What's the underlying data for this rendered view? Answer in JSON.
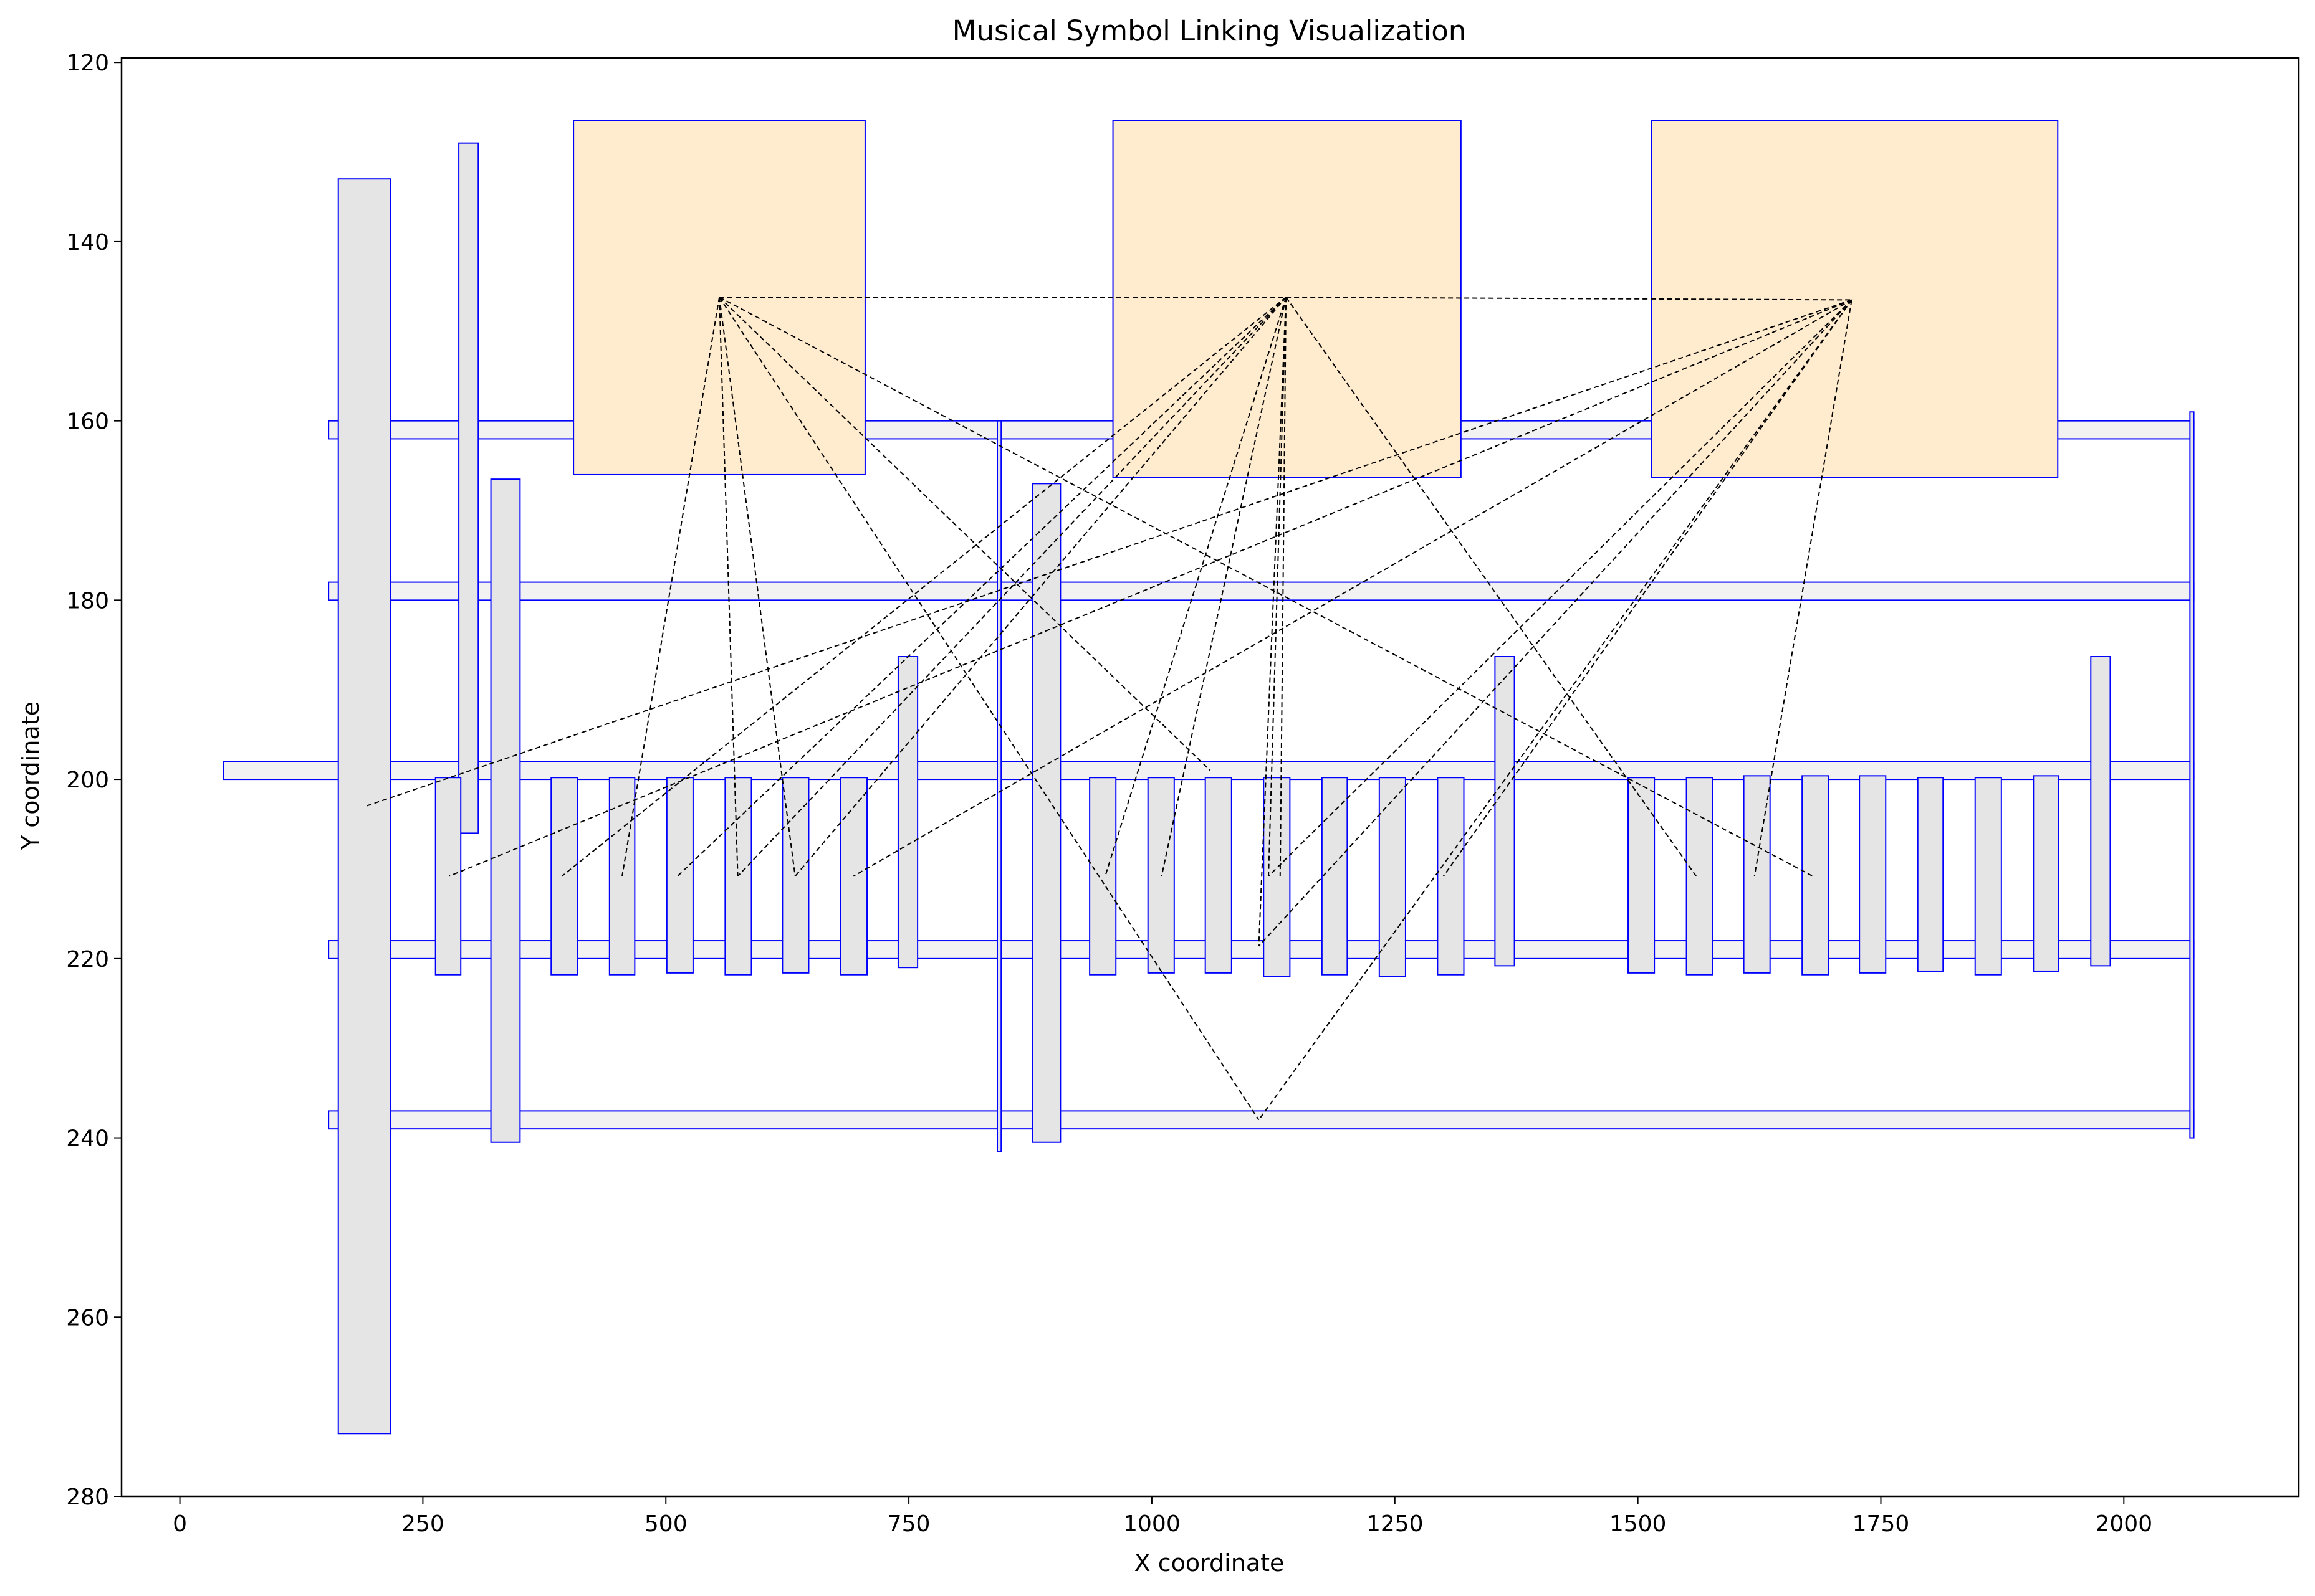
{
  "chart_data": {
    "type": "scatter",
    "title": "Musical Symbol Linking Visualization",
    "xlabel": "X coordinate",
    "ylabel": "Y coordinate",
    "xlim": [
      -60,
      2180
    ],
    "ylim": [
      280,
      119.5
    ],
    "y_inverted": true,
    "grid": false,
    "legend": "none",
    "xticks": [
      0,
      250,
      500,
      750,
      1000,
      1250,
      1500,
      1750,
      2000
    ],
    "yticks": [
      120,
      140,
      160,
      180,
      200,
      220,
      240,
      260,
      280
    ],
    "colors": {
      "box_edge": "#0000ff",
      "orange_fill": "#ffebcd",
      "gray_fill": "#e5e5e5",
      "staff_fill": "#f2f2f2",
      "link": "#000000"
    },
    "series": [
      {
        "boxes": [
          {
            "x": [
              153,
              2072
            ],
            "y": [
              160.0,
              162.0
            ],
            "fill": "staff"
          },
          {
            "x": [
              153,
              2072
            ],
            "y": [
              178.0,
              180.0
            ],
            "fill": "staff"
          },
          {
            "x": [
              45,
              2072
            ],
            "y": [
              198.0,
              200.0
            ],
            "fill": "staff"
          },
          {
            "x": [
              153,
              2072
            ],
            "y": [
              218.0,
              220.0
            ],
            "fill": "staff"
          },
          {
            "x": [
              153,
              2072
            ],
            "y": [
              237.0,
              239.0
            ],
            "fill": "staff"
          },
          {
            "x": [
              405,
              705
            ],
            "y": [
              126.5,
              166.0
            ],
            "fill": "orange"
          },
          {
            "x": [
              960,
              1318
            ],
            "y": [
              126.5,
              166.3
            ],
            "fill": "orange"
          },
          {
            "x": [
              1514,
              1932
            ],
            "y": [
              126.5,
              166.3
            ],
            "fill": "orange"
          },
          {
            "x": [
              163,
              217
            ],
            "y": [
              133.0,
              273.0
            ],
            "fill": "gray"
          },
          {
            "x": [
              287,
              307
            ],
            "y": [
              129.0,
              206.0
            ],
            "fill": "gray"
          },
          {
            "x": [
              320,
              350
            ],
            "y": [
              166.5,
              240.5
            ],
            "fill": "gray"
          },
          {
            "x": [
              263,
              289
            ],
            "y": [
              199.8,
              221.8
            ],
            "fill": "gray"
          },
          {
            "x": [
              382,
              409
            ],
            "y": [
              199.8,
              221.8
            ],
            "fill": "gray"
          },
          {
            "x": [
              442,
              468
            ],
            "y": [
              199.8,
              221.8
            ],
            "fill": "gray"
          },
          {
            "x": [
              501,
              528
            ],
            "y": [
              199.8,
              221.6
            ],
            "fill": "gray"
          },
          {
            "x": [
              561,
              588
            ],
            "y": [
              199.8,
              221.8
            ],
            "fill": "gray"
          },
          {
            "x": [
              620,
              647
            ],
            "y": [
              199.8,
              221.6
            ],
            "fill": "gray"
          },
          {
            "x": [
              680,
              707
            ],
            "y": [
              199.8,
              221.8
            ],
            "fill": "gray"
          },
          {
            "x": [
              739,
              759
            ],
            "y": [
              186.3,
              221.0
            ],
            "fill": "gray"
          },
          {
            "x": [
              841,
              845
            ],
            "y": [
              160.0,
              241.5
            ],
            "fill": "gray"
          },
          {
            "x": [
              877,
              906
            ],
            "y": [
              167.0,
              240.5
            ],
            "fill": "gray"
          },
          {
            "x": [
              936,
              963
            ],
            "y": [
              199.8,
              221.8
            ],
            "fill": "gray"
          },
          {
            "x": [
              996,
              1023
            ],
            "y": [
              199.8,
              221.6
            ],
            "fill": "gray"
          },
          {
            "x": [
              1055,
              1082
            ],
            "y": [
              199.8,
              221.6
            ],
            "fill": "gray"
          },
          {
            "x": [
              1115,
              1142
            ],
            "y": [
              199.8,
              222.0
            ],
            "fill": "gray"
          },
          {
            "x": [
              1175,
              1201
            ],
            "y": [
              199.8,
              221.8
            ],
            "fill": "gray"
          },
          {
            "x": [
              1234,
              1261
            ],
            "y": [
              199.8,
              222.0
            ],
            "fill": "gray"
          },
          {
            "x": [
              1294,
              1321
            ],
            "y": [
              199.8,
              221.8
            ],
            "fill": "gray"
          },
          {
            "x": [
              1353,
              1373
            ],
            "y": [
              186.3,
              220.8
            ],
            "fill": "gray"
          },
          {
            "x": [
              1490,
              1517
            ],
            "y": [
              199.8,
              221.6
            ],
            "fill": "gray"
          },
          {
            "x": [
              1550,
              1577
            ],
            "y": [
              199.8,
              221.8
            ],
            "fill": "gray"
          },
          {
            "x": [
              1609,
              1636
            ],
            "y": [
              199.6,
              221.6
            ],
            "fill": "gray"
          },
          {
            "x": [
              1669,
              1696
            ],
            "y": [
              199.6,
              221.8
            ],
            "fill": "gray"
          },
          {
            "x": [
              1728,
              1755
            ],
            "y": [
              199.6,
              221.6
            ],
            "fill": "gray"
          },
          {
            "x": [
              1788,
              1814
            ],
            "y": [
              199.8,
              221.4
            ],
            "fill": "gray"
          },
          {
            "x": [
              1847,
              1874
            ],
            "y": [
              199.8,
              221.8
            ],
            "fill": "gray"
          },
          {
            "x": [
              1907,
              1933
            ],
            "y": [
              199.6,
              221.4
            ],
            "fill": "gray"
          },
          {
            "x": [
              1966,
              1986
            ],
            "y": [
              186.3,
              220.8
            ],
            "fill": "gray"
          },
          {
            "x": [
              2068,
              2072
            ],
            "y": [
              159.0,
              240.0
            ],
            "fill": "gray"
          }
        ]
      },
      {
        "links": [
          {
            "from": [
              555,
              146.2
            ],
            "to": [
              1138,
              146.2
            ]
          },
          {
            "from": [
              1138,
              146.2
            ],
            "to": [
              1720,
              146.5
            ]
          },
          {
            "from": [
              555,
              146.2
            ],
            "to": [
              455,
              210.8
            ]
          },
          {
            "from": [
              555,
              146.2
            ],
            "to": [
              574,
              210.8
            ]
          },
          {
            "from": [
              555,
              146.2
            ],
            "to": [
              633,
              210.8
            ]
          },
          {
            "from": [
              555,
              146.2
            ],
            "to": [
              1060,
              199.0
            ]
          },
          {
            "from": [
              555,
              146.2
            ],
            "to": [
              1110,
              238.0
            ]
          },
          {
            "from": [
              555,
              146.2
            ],
            "to": [
              1680,
              210.8
            ]
          },
          {
            "from": [
              1138,
              146.2
            ],
            "to": [
              393,
              210.8
            ]
          },
          {
            "from": [
              1138,
              146.2
            ],
            "to": [
              512,
              210.8
            ]
          },
          {
            "from": [
              1138,
              146.2
            ],
            "to": [
              574,
              210.8
            ]
          },
          {
            "from": [
              1138,
              146.2
            ],
            "to": [
              633,
              210.8
            ]
          },
          {
            "from": [
              1138,
              146.2
            ],
            "to": [
              952,
              210.8
            ]
          },
          {
            "from": [
              1138,
              146.2
            ],
            "to": [
              1010,
              210.8
            ]
          },
          {
            "from": [
              1138,
              146.2
            ],
            "to": [
              1120,
              210.8
            ]
          },
          {
            "from": [
              1138,
              146.2
            ],
            "to": [
              1132,
              210.8
            ]
          },
          {
            "from": [
              1138,
              146.2
            ],
            "to": [
              1110,
              218.6
            ]
          },
          {
            "from": [
              1138,
              146.2
            ],
            "to": [
              1560,
              210.8
            ]
          },
          {
            "from": [
              1720,
              146.5
            ],
            "to": [
              191,
              203.0
            ]
          },
          {
            "from": [
              1720,
              146.5
            ],
            "to": [
              277,
              210.8
            ]
          },
          {
            "from": [
              1720,
              146.5
            ],
            "to": [
              693,
              210.8
            ]
          },
          {
            "from": [
              1720,
              146.5
            ],
            "to": [
              1110,
              218.6
            ]
          },
          {
            "from": [
              1720,
              146.5
            ],
            "to": [
              1120,
              210.8
            ]
          },
          {
            "from": [
              1720,
              146.5
            ],
            "to": [
              1110,
              238.0
            ]
          },
          {
            "from": [
              1720,
              146.5
            ],
            "to": [
              1300,
              210.8
            ]
          },
          {
            "from": [
              1720,
              146.5
            ],
            "to": [
              1620,
              210.8
            ]
          }
        ]
      }
    ]
  }
}
